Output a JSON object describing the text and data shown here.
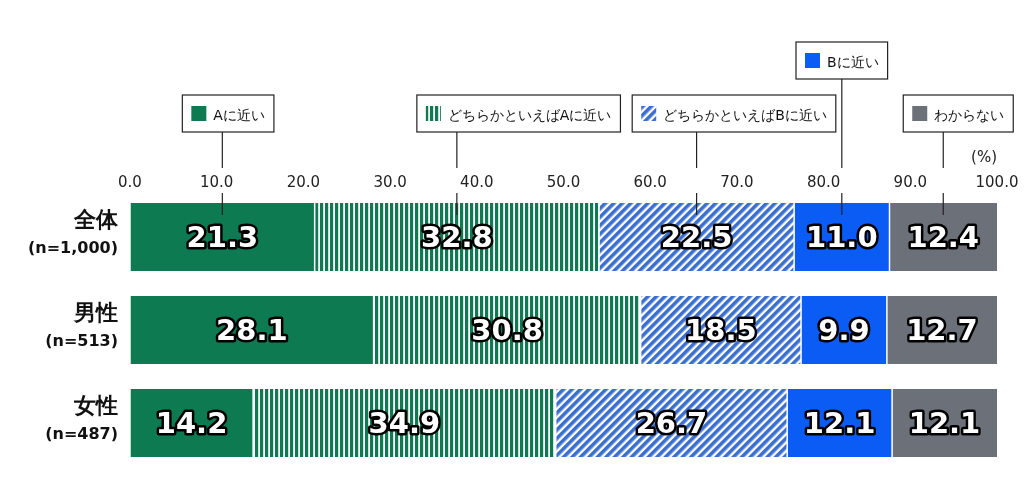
{
  "chart_data": {
    "type": "bar",
    "orientation": "horizontal",
    "stacked": true,
    "legend": "top",
    "xlabel": "(%)",
    "xlim": [
      0,
      100
    ],
    "xticks": [
      {
        "value": 0,
        "label": "0.0"
      },
      {
        "value": 10,
        "label": "10.0"
      },
      {
        "value": 20,
        "label": "20.0"
      },
      {
        "value": 30,
        "label": "30.0"
      },
      {
        "value": 40,
        "label": "40.0"
      },
      {
        "value": 50,
        "label": "50.0"
      },
      {
        "value": 60,
        "label": "60.0"
      },
      {
        "value": 70,
        "label": "70.0"
      },
      {
        "value": 80,
        "label": "80.0"
      },
      {
        "value": 90,
        "label": "90.0"
      },
      {
        "value": 100,
        "label": "100.0"
      }
    ],
    "categories": [
      "全体\n(n=1,000)",
      "男性\n(n=513)",
      "女性\n(n=487)"
    ],
    "series": [
      {
        "name": "Aに近い",
        "color": "#0e7a52",
        "values": [
          21.3,
          28.1,
          14.2
        ],
        "value_labels": [
          "21.3",
          "28.1",
          "14.2"
        ]
      },
      {
        "name": "どちらかといえばAに近い",
        "color": "#0e7a52",
        "values": [
          32.8,
          30.8,
          34.9
        ],
        "value_labels": [
          "32.8",
          "30.8",
          "34.9"
        ]
      },
      {
        "name": "どちらかといえばBに近い",
        "color": "#3a6fd0",
        "values": [
          22.5,
          18.5,
          26.7
        ],
        "value_labels": [
          "22.5",
          "18.5",
          "26.7"
        ]
      },
      {
        "name": "Bに近い",
        "color": "#0a5cf5",
        "values": [
          11.0,
          9.9,
          12.1
        ],
        "value_labels": [
          "11.0",
          "9.9",
          "12.1"
        ]
      },
      {
        "name": "わからない",
        "color": "#6b7079",
        "values": [
          12.4,
          12.7,
          12.1
        ],
        "value_labels": [
          "12.4",
          "12.7",
          "12.1"
        ]
      }
    ]
  }
}
